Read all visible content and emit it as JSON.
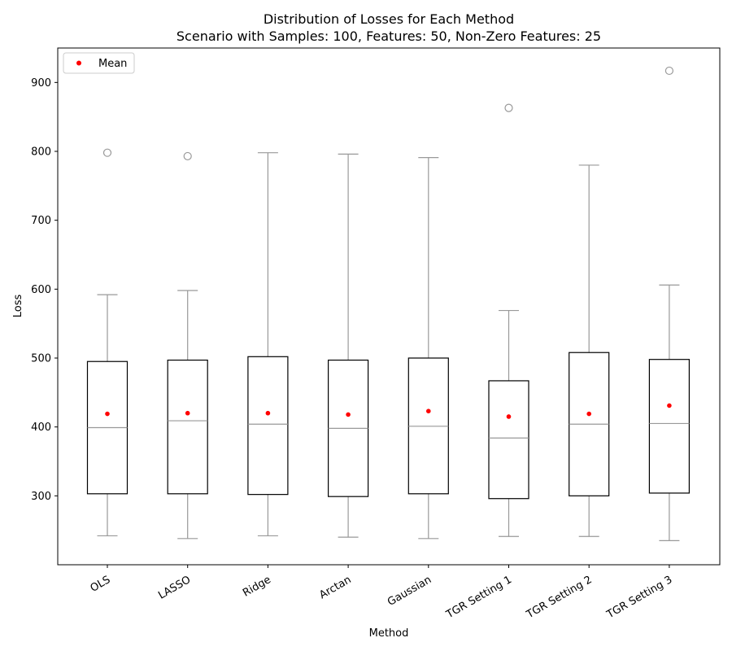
{
  "chart_data": {
    "type": "boxplot",
    "title": "Distribution of Losses for Each Method",
    "subtitle": "Scenario with Samples: 100, Features: 50, Non-Zero Features: 25",
    "xlabel": "Method",
    "ylabel": "Loss",
    "ylim": [
      200,
      950
    ],
    "yticks": [
      300,
      400,
      500,
      600,
      700,
      800,
      900
    ],
    "legend": {
      "label": "Mean",
      "placement": "top-left"
    },
    "colors": {
      "box": "#000000",
      "whisker": "#999999",
      "median": "#999999",
      "mean": "#ff0000",
      "flier": "#999999"
    },
    "categories": [
      "OLS",
      "LASSO",
      "Ridge",
      "Arctan",
      "Gaussian",
      "TGR Setting 1",
      "TGR Setting 2",
      "TGR Setting 3"
    ],
    "boxes": [
      {
        "whisker_low": 242,
        "q1": 303,
        "median": 399,
        "q3": 495,
        "whisker_high": 592,
        "mean": 419,
        "outliers": [
          798
        ]
      },
      {
        "whisker_low": 238,
        "q1": 303,
        "median": 409,
        "q3": 497,
        "whisker_high": 598,
        "mean": 420,
        "outliers": [
          793
        ]
      },
      {
        "whisker_low": 242,
        "q1": 302,
        "median": 404,
        "q3": 502,
        "whisker_high": 798,
        "mean": 420,
        "outliers": []
      },
      {
        "whisker_low": 240,
        "q1": 299,
        "median": 398,
        "q3": 497,
        "whisker_high": 796,
        "mean": 418,
        "outliers": []
      },
      {
        "whisker_low": 238,
        "q1": 303,
        "median": 401,
        "q3": 500,
        "whisker_high": 791,
        "mean": 423,
        "outliers": []
      },
      {
        "whisker_low": 241,
        "q1": 296,
        "median": 384,
        "q3": 467,
        "whisker_high": 569,
        "mean": 415,
        "outliers": [
          863
        ]
      },
      {
        "whisker_low": 241,
        "q1": 300,
        "median": 404,
        "q3": 508,
        "whisker_high": 780,
        "mean": 419,
        "outliers": []
      },
      {
        "whisker_low": 235,
        "q1": 304,
        "median": 405,
        "q3": 498,
        "whisker_high": 606,
        "mean": 431,
        "outliers": [
          917
        ]
      }
    ]
  }
}
